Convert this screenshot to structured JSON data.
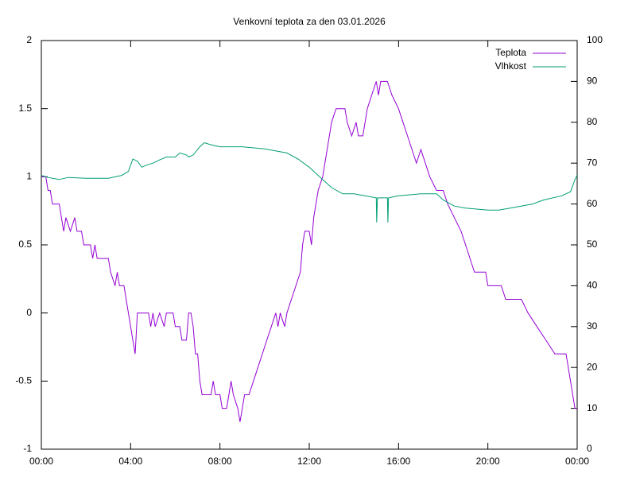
{
  "chart_data": {
    "type": "line",
    "title": "Venkovní teplota za den 03.01.2026",
    "xlim": [
      0,
      24
    ],
    "xticks": [
      {
        "value": 0,
        "label": "00:00"
      },
      {
        "value": 4,
        "label": "04:00"
      },
      {
        "value": 8,
        "label": "08:00"
      },
      {
        "value": 12,
        "label": "12:00"
      },
      {
        "value": 16,
        "label": "16:00"
      },
      {
        "value": 20,
        "label": "20:00"
      },
      {
        "value": 24,
        "label": "00:00"
      }
    ],
    "ylim": [
      -1,
      2
    ],
    "yticks": [
      -1,
      -0.5,
      0,
      0.5,
      1,
      1.5,
      2
    ],
    "y2lim": [
      0,
      100
    ],
    "y2ticks": [
      0,
      10,
      20,
      30,
      40,
      50,
      60,
      70,
      80,
      90,
      100
    ],
    "grid": false,
    "legend": "top-right",
    "series": [
      {
        "name": "Teplota",
        "color": "#9400d3",
        "x": [
          0,
          0.2,
          0.3,
          0.4,
          0.5,
          0.8,
          0.9,
          1.0,
          1.1,
          1.3,
          1.5,
          1.6,
          1.8,
          1.9,
          2.2,
          2.3,
          2.4,
          2.5,
          3.0,
          3.1,
          3.3,
          3.4,
          3.5,
          3.7,
          3.8,
          3.9,
          4.0,
          4.1,
          4.2,
          4.3,
          4.5,
          4.8,
          4.9,
          5.0,
          5.1,
          5.3,
          5.5,
          5.6,
          5.9,
          6.0,
          6.2,
          6.3,
          6.5,
          6.6,
          6.7,
          6.8,
          6.9,
          7.0,
          7.1,
          7.2,
          7.6,
          7.7,
          7.8,
          8.0,
          8.1,
          8.3,
          8.4,
          8.5,
          8.6,
          8.8,
          8.9,
          9.0,
          9.1,
          9.3,
          9.5,
          9.7,
          9.9,
          10.1,
          10.3,
          10.5,
          10.6,
          10.7,
          10.9,
          11.0,
          11.2,
          11.4,
          11.6,
          11.7,
          11.8,
          12.0,
          12.1,
          12.2,
          12.4,
          12.6,
          12.8,
          13.0,
          13.2,
          13.6,
          13.7,
          13.9,
          14.1,
          14.2,
          14.4,
          14.6,
          14.8,
          15.0,
          15.1,
          15.2,
          15.5,
          15.7,
          16.0,
          16.2,
          16.4,
          16.6,
          16.8,
          17.0,
          17.2,
          17.4,
          17.7,
          18.0,
          18.2,
          18.5,
          18.8,
          19.0,
          19.2,
          19.4,
          19.9,
          20.0,
          20.6,
          20.8,
          21.5,
          21.8,
          22.2,
          22.6,
          23.0,
          23.5,
          23.6,
          23.7,
          23.9,
          24.0
        ],
        "values": [
          1.0,
          1.0,
          0.9,
          0.9,
          0.8,
          0.8,
          0.7,
          0.6,
          0.7,
          0.6,
          0.7,
          0.6,
          0.6,
          0.5,
          0.5,
          0.4,
          0.5,
          0.4,
          0.4,
          0.3,
          0.2,
          0.3,
          0.2,
          0.2,
          0.1,
          0.0,
          -0.1,
          -0.2,
          -0.3,
          0.0,
          0.0,
          0.0,
          -0.1,
          0.0,
          -0.1,
          0.0,
          -0.1,
          0.0,
          0.0,
          -0.1,
          -0.1,
          -0.2,
          -0.2,
          0.0,
          0.0,
          -0.1,
          -0.3,
          -0.3,
          -0.5,
          -0.6,
          -0.6,
          -0.5,
          -0.6,
          -0.6,
          -0.7,
          -0.7,
          -0.6,
          -0.5,
          -0.6,
          -0.7,
          -0.8,
          -0.7,
          -0.6,
          -0.6,
          -0.5,
          -0.4,
          -0.3,
          -0.2,
          -0.1,
          0.0,
          -0.1,
          0.0,
          -0.1,
          0.0,
          0.1,
          0.2,
          0.3,
          0.5,
          0.6,
          0.6,
          0.5,
          0.7,
          0.9,
          1.0,
          1.2,
          1.4,
          1.5,
          1.5,
          1.4,
          1.3,
          1.4,
          1.3,
          1.3,
          1.5,
          1.6,
          1.7,
          1.6,
          1.7,
          1.7,
          1.6,
          1.5,
          1.4,
          1.3,
          1.2,
          1.1,
          1.2,
          1.1,
          1.0,
          0.9,
          0.9,
          0.8,
          0.7,
          0.6,
          0.5,
          0.4,
          0.3,
          0.3,
          0.2,
          0.2,
          0.1,
          0.1,
          0.0,
          -0.1,
          -0.2,
          -0.3,
          -0.3,
          -0.4,
          -0.5,
          -0.7,
          -0.7
        ]
      },
      {
        "name": "Vlhkost",
        "color": "#009e73",
        "axis": "y2",
        "x": [
          0,
          0.3,
          0.8,
          1.2,
          2,
          3,
          3.6,
          3.9,
          4.1,
          4.3,
          4.5,
          4.7,
          5.0,
          5.3,
          5.6,
          6.0,
          6.2,
          6.5,
          6.6,
          6.8,
          7.1,
          7.3,
          7.6,
          8.0,
          8.5,
          9.0,
          10,
          11,
          11.5,
          12.0,
          12.5,
          13.0,
          13.5,
          14.0,
          14.5,
          15.0,
          15.02,
          15.05,
          15.5,
          15.52,
          15.55,
          16,
          17,
          17.7,
          18,
          18.5,
          19,
          20,
          20.5,
          21,
          22,
          22.5,
          23.3,
          23.7,
          23.9,
          24
        ],
        "values": [
          67,
          66.5,
          66,
          66.5,
          66.3,
          66.3,
          67,
          68,
          71,
          70.5,
          69,
          69.5,
          70,
          70.8,
          71.5,
          71.5,
          72.5,
          72,
          71.5,
          72,
          74,
          75,
          74.5,
          74,
          74,
          74,
          73.5,
          72.5,
          71,
          69,
          66.5,
          64,
          62.5,
          62.5,
          62,
          61.5,
          55.5,
          61.5,
          61.5,
          55.5,
          61.5,
          62,
          62.5,
          62.5,
          61,
          59.5,
          59,
          58.5,
          58.5,
          59,
          60,
          61,
          62,
          63,
          66,
          67
        ]
      }
    ]
  }
}
